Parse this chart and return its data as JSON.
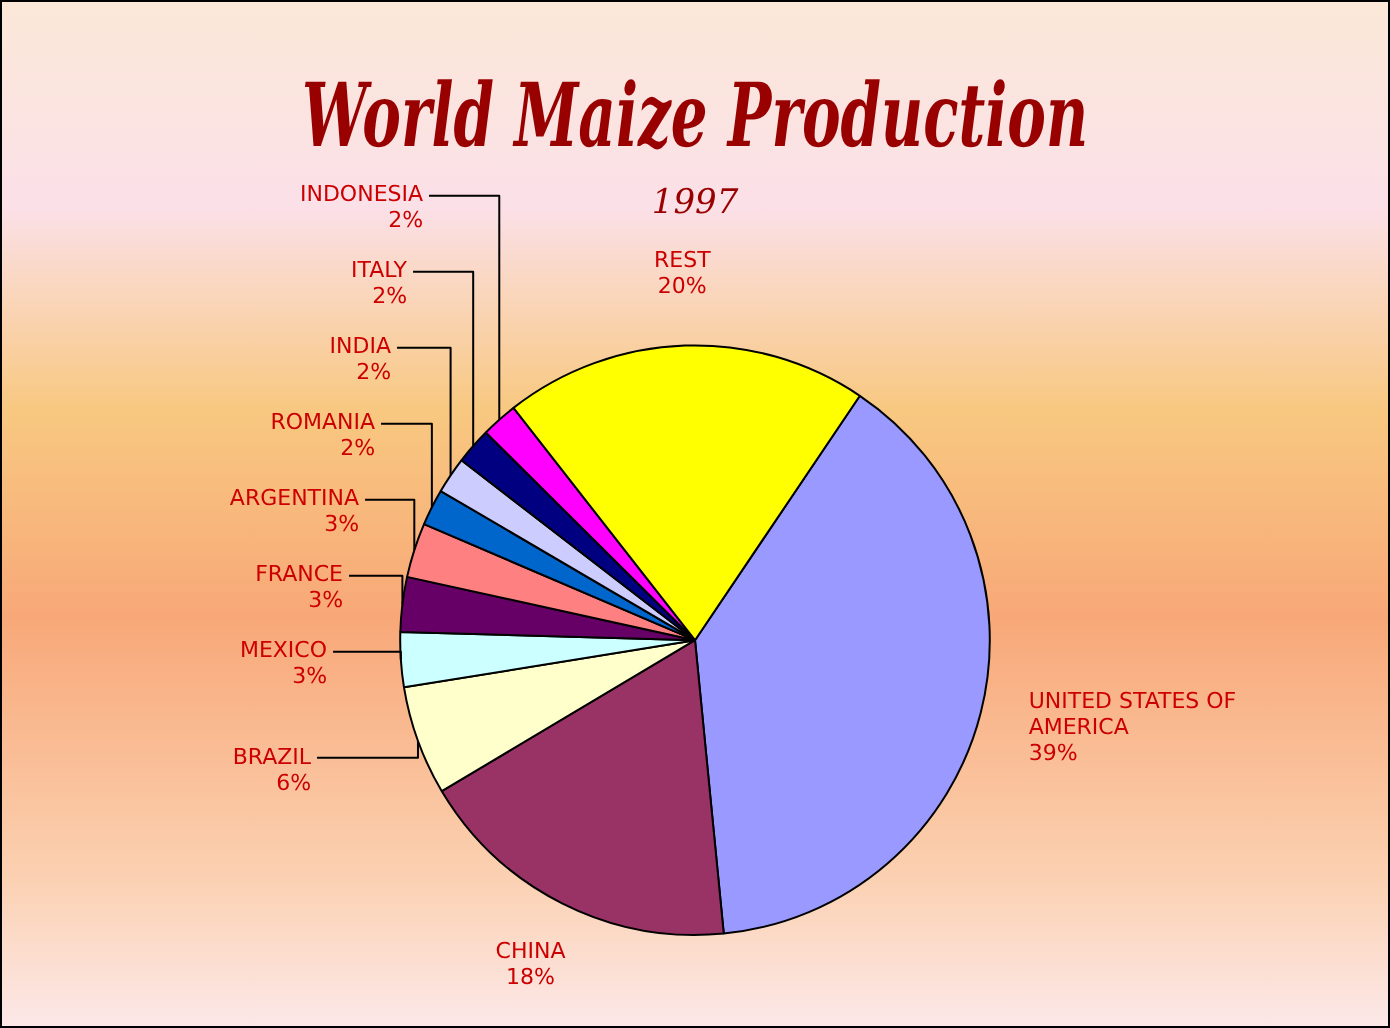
{
  "chart_data": {
    "type": "pie",
    "title": "World Maize Production",
    "subtitle": "1997",
    "categories": [
      "UNITED STATES OF AMERICA",
      "CHINA",
      "BRAZIL",
      "MEXICO",
      "FRANCE",
      "ARGENTINA",
      "ROMANIA",
      "INDIA",
      "ITALY",
      "INDONESIA",
      "REST"
    ],
    "values": [
      39,
      18,
      6,
      3,
      3,
      3,
      2,
      2,
      2,
      2,
      20
    ],
    "value_labels": [
      "39%",
      "18%",
      "6%",
      "3%",
      "3%",
      "3%",
      "2%",
      "2%",
      "2%",
      "2%",
      "20%"
    ],
    "colors": [
      "#9999ff",
      "#993366",
      "#ffffcc",
      "#ccffff",
      "#660066",
      "#ff8080",
      "#0066cc",
      "#ccccff",
      "#000080",
      "#ff00ff",
      "#ffff00"
    ],
    "legend": false
  }
}
